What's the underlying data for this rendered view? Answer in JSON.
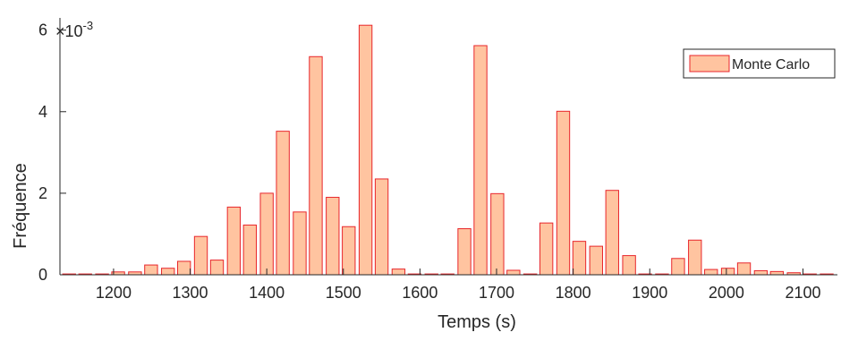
{
  "chart_data": {
    "type": "bar",
    "xlabel": "Temps (s)",
    "ylabel": "Fréquence",
    "exponent_base": "×10",
    "exponent_power": "-3",
    "xlim": [
      1130,
      2145
    ],
    "ylim": [
      0,
      6.3
    ],
    "xticks": [
      1200,
      1300,
      1400,
      1500,
      1600,
      1700,
      1800,
      1900,
      2000,
      2100
    ],
    "yticks": [
      0,
      2,
      4,
      6
    ],
    "bin_width": 21.5,
    "legend_position": "top-right",
    "bar_fill": "#FFC4A0",
    "bar_edge": "#E8262B",
    "series": [
      {
        "name": "Monte Carlo",
        "x": [
          1142,
          1163,
          1185,
          1206,
          1228,
          1249,
          1271,
          1292,
          1314,
          1335,
          1357,
          1378,
          1400,
          1421,
          1443,
          1464,
          1486,
          1507,
          1529,
          1550,
          1572,
          1593,
          1615,
          1636,
          1658,
          1679,
          1701,
          1722,
          1744,
          1765,
          1787,
          1808,
          1830,
          1851,
          1873,
          1894,
          1916,
          1937,
          1959,
          1980,
          2002,
          2023,
          2045,
          2066,
          2088,
          2109,
          2131
        ],
        "values": [
          0.02,
          0.02,
          0.02,
          0.07,
          0.07,
          0.24,
          0.16,
          0.33,
          0.94,
          0.36,
          1.66,
          1.22,
          2.0,
          3.52,
          1.54,
          5.35,
          1.9,
          1.18,
          6.12,
          2.35,
          0.14,
          0.02,
          0.02,
          0.02,
          1.13,
          5.62,
          1.99,
          0.11,
          0.02,
          1.27,
          4.01,
          0.82,
          0.7,
          2.07,
          0.47,
          0.02,
          0.02,
          0.4,
          0.85,
          0.13,
          0.16,
          0.29,
          0.1,
          0.08,
          0.05,
          0.02,
          0.02
        ]
      }
    ]
  }
}
